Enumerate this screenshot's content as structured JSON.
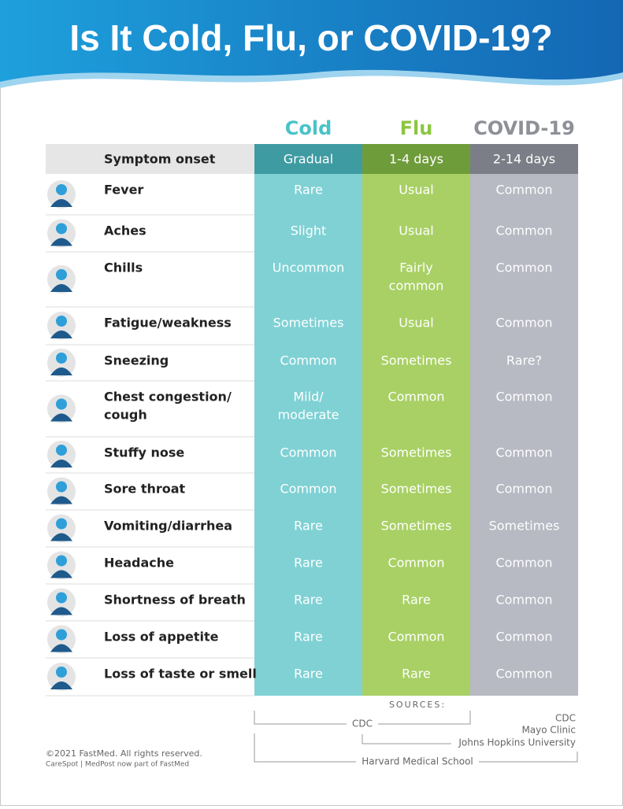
{
  "header": {
    "title": "Is It Cold, Flu, or COVID-19?"
  },
  "table": {
    "columns": [
      "Cold",
      "Flu",
      "COVID-19"
    ],
    "onset": {
      "label": "Symptom onset",
      "cells": [
        "Gradual",
        "1-4 days",
        "2-14 days"
      ]
    },
    "rows": [
      {
        "symptom": [
          "Fever"
        ],
        "cells": [
          [
            "Rare"
          ],
          [
            "Usual"
          ],
          [
            "Common"
          ]
        ]
      },
      {
        "symptom": [
          "Aches"
        ],
        "cells": [
          [
            "Slight"
          ],
          [
            "Usual"
          ],
          [
            "Common"
          ]
        ]
      },
      {
        "symptom": [
          "Chills"
        ],
        "cells": [
          [
            "Uncommon"
          ],
          [
            "Fairly",
            "common"
          ],
          [
            "Common"
          ]
        ]
      },
      {
        "symptom": [
          "Fatigue/weakness"
        ],
        "cells": [
          [
            "Sometimes"
          ],
          [
            "Usual"
          ],
          [
            "Common"
          ]
        ]
      },
      {
        "symptom": [
          "Sneezing"
        ],
        "cells": [
          [
            "Common"
          ],
          [
            "Sometimes"
          ],
          [
            "Rare?"
          ]
        ]
      },
      {
        "symptom": [
          "Chest congestion/",
          "cough"
        ],
        "cells": [
          [
            "Mild/",
            "moderate"
          ],
          [
            "Common"
          ],
          [
            "Common"
          ]
        ]
      },
      {
        "symptom": [
          "Stuffy nose"
        ],
        "cells": [
          [
            "Common"
          ],
          [
            "Sometimes"
          ],
          [
            "Common"
          ]
        ]
      },
      {
        "symptom": [
          "Sore throat"
        ],
        "cells": [
          [
            "Common"
          ],
          [
            "Sometimes"
          ],
          [
            "Common"
          ]
        ]
      },
      {
        "symptom": [
          "Vomiting/diarrhea"
        ],
        "cells": [
          [
            "Rare"
          ],
          [
            "Sometimes"
          ],
          [
            "Sometimes"
          ]
        ]
      },
      {
        "symptom": [
          "Headache"
        ],
        "cells": [
          [
            "Rare"
          ],
          [
            "Common"
          ],
          [
            "Common"
          ]
        ]
      },
      {
        "symptom": [
          "Shortness of breath"
        ],
        "cells": [
          [
            "Rare"
          ],
          [
            "Rare"
          ],
          [
            "Common"
          ]
        ]
      },
      {
        "symptom": [
          "Loss of appetite"
        ],
        "cells": [
          [
            "Rare"
          ],
          [
            "Common"
          ],
          [
            "Common"
          ]
        ]
      },
      {
        "symptom": [
          "Loss of taste or smell"
        ],
        "cells": [
          [
            "Rare"
          ],
          [
            "Rare"
          ],
          [
            "Common"
          ]
        ]
      }
    ]
  },
  "sources": {
    "heading": "SOURCES:",
    "cold_flu": "CDC",
    "covid": [
      "CDC",
      "Mayo Clinic"
    ],
    "flu_covid": "Johns Hopkins University",
    "all": "Harvard Medical School"
  },
  "footer": {
    "copyright": "©2021 FastMed. All rights reserved.",
    "note": "CareSpot | MedPost now part of FastMed"
  }
}
